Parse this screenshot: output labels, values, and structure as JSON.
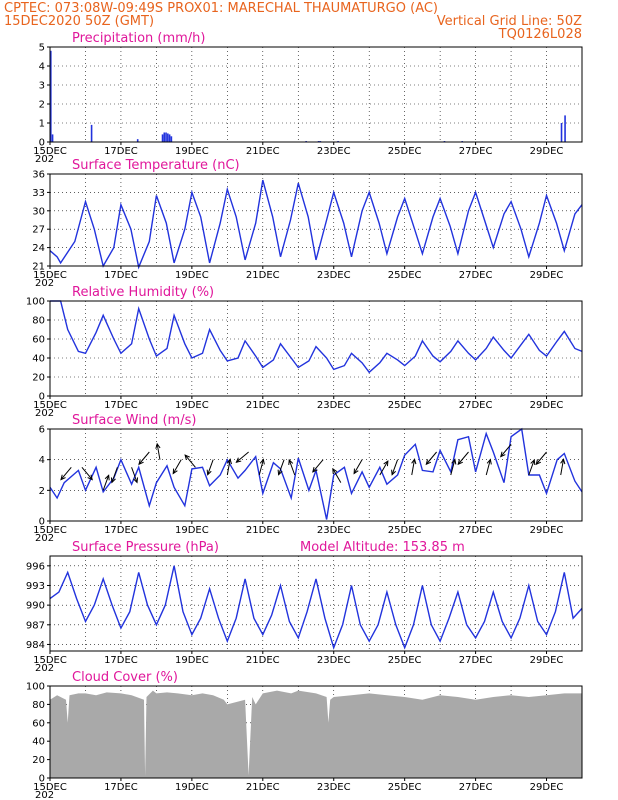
{
  "header": {
    "line1_left": "CPTEC:   073:08W-09:49S   PROX01: MARECHAL THAUMATURGO (AC)",
    "line2_left": "15DEC2020 50Z (GMT)",
    "line2_right": "Vertical Grid Line: 50Z",
    "line3_right": "TQ0126L028"
  },
  "colors": {
    "series": "#2233dd",
    "header": "#e8641e",
    "title": "#e0179b",
    "cloud": "#a9a9a9"
  },
  "x_axis": {
    "labels": [
      "15DEC",
      "17DEC",
      "19DEC",
      "21DEC",
      "23DEC",
      "25DEC",
      "27DEC",
      "29DEC"
    ],
    "clip_label": "202"
  },
  "chart_data": [
    {
      "type": "bar",
      "title": "Precipitation (mm/h)",
      "ylim": [
        0,
        5
      ],
      "yticks": [
        0,
        1,
        2,
        3,
        4,
        5
      ],
      "x": [
        0.0,
        0.05,
        1.15,
        2.45,
        3.15,
        3.2,
        3.25,
        3.3,
        3.35,
        3.4,
        7.2,
        7.55,
        7.6,
        8.1,
        11.1,
        11.6,
        14.4,
        14.5
      ],
      "values": [
        4.8,
        0.4,
        0.9,
        0.15,
        0.4,
        0.5,
        0.5,
        0.45,
        0.4,
        0.3,
        0.05,
        0.05,
        0.05,
        0.05,
        0.05,
        0.05,
        1.0,
        1.4
      ]
    },
    {
      "type": "line",
      "title": "Surface Temperature (nC)",
      "ylim": [
        21,
        36
      ],
      "yticks": [
        21,
        24,
        27,
        30,
        33,
        36
      ],
      "x": [
        0,
        0.2,
        0.3,
        0.7,
        1,
        1.25,
        1.5,
        1.8,
        2,
        2.28,
        2.5,
        2.8,
        3,
        3.28,
        3.5,
        3.8,
        4,
        4.25,
        4.5,
        4.8,
        5,
        5.25,
        5.5,
        5.8,
        6,
        6.28,
        6.5,
        6.78,
        7,
        7.28,
        7.5,
        7.8,
        8,
        8.28,
        8.5,
        8.8,
        9,
        9.28,
        9.5,
        9.8,
        10,
        10.28,
        10.5,
        10.8,
        11,
        11.28,
        11.5,
        11.8,
        12,
        12.28,
        12.5,
        12.8,
        13,
        13.28,
        13.5,
        13.8,
        14,
        14.28,
        14.5,
        14.8,
        15
      ],
      "values": [
        23.5,
        22.5,
        21.5,
        25,
        31.5,
        27,
        21,
        24,
        31,
        27,
        20.8,
        25,
        32.5,
        28,
        21.5,
        27,
        33,
        29,
        21.5,
        28,
        33.5,
        29,
        22,
        28,
        35,
        29,
        22.5,
        28.5,
        34.5,
        29,
        22,
        28.5,
        33,
        28,
        22.5,
        30,
        33,
        28,
        23,
        29,
        32,
        27,
        23,
        29,
        32,
        27.5,
        23,
        30,
        33,
        28,
        24,
        29.5,
        31.5,
        27,
        22.5,
        28,
        32.5,
        28,
        23.5,
        29.5,
        31
      ]
    },
    {
      "type": "line",
      "title": "Relative Humidity (%)",
      "ylim": [
        0,
        100
      ],
      "yticks": [
        0,
        20,
        40,
        60,
        80,
        100
      ],
      "x": [
        0,
        0.3,
        0.5,
        0.8,
        1,
        1.3,
        1.5,
        1.8,
        2,
        2.3,
        2.5,
        2.8,
        3,
        3.3,
        3.5,
        3.8,
        4,
        4.3,
        4.5,
        4.8,
        5,
        5.3,
        5.5,
        5.8,
        6,
        6.3,
        6.5,
        6.8,
        7,
        7.3,
        7.5,
        7.8,
        8,
        8.3,
        8.5,
        8.8,
        9,
        9.3,
        9.5,
        9.8,
        10,
        10.3,
        10.5,
        10.8,
        11,
        11.3,
        11.5,
        11.8,
        12,
        12.3,
        12.5,
        12.8,
        13,
        13.3,
        13.5,
        13.8,
        14,
        14.3,
        14.5,
        14.8,
        15
      ],
      "values": [
        100,
        100,
        70,
        47,
        45,
        67,
        85,
        60,
        45,
        55,
        92,
        60,
        42,
        50,
        85,
        55,
        40,
        45,
        70,
        48,
        37,
        40,
        58,
        42,
        30,
        38,
        55,
        40,
        30,
        37,
        52,
        40,
        28,
        32,
        45,
        35,
        25,
        35,
        45,
        38,
        32,
        42,
        58,
        42,
        36,
        47,
        58,
        45,
        38,
        50,
        62,
        48,
        40,
        55,
        65,
        48,
        42,
        58,
        68,
        50,
        47
      ]
    },
    {
      "type": "line",
      "title": "Surface Wind (m/s)",
      "ylim": [
        0,
        6
      ],
      "yticks": [
        0,
        2,
        4,
        6
      ],
      "x": [
        0,
        0.2,
        0.4,
        0.8,
        1,
        1.3,
        1.5,
        1.8,
        2,
        2.3,
        2.5,
        2.8,
        3,
        3.3,
        3.5,
        3.8,
        4,
        4.3,
        4.5,
        4.8,
        5,
        5.3,
        5.5,
        5.8,
        6,
        6.3,
        6.5,
        6.8,
        7,
        7.3,
        7.5,
        7.8,
        8,
        8.3,
        8.5,
        8.8,
        9,
        9.3,
        9.5,
        9.8,
        10,
        10.3,
        10.5,
        10.8,
        11,
        11.3,
        11.5,
        11.8,
        12,
        12.3,
        12.5,
        12.8,
        13,
        13.3,
        13.5,
        13.8,
        14,
        14.3,
        14.5,
        14.8,
        15
      ],
      "values": [
        2.2,
        1.5,
        2.5,
        3.3,
        2,
        3.5,
        1.9,
        2.8,
        4,
        2.4,
        3.5,
        1,
        2.5,
        3.6,
        2.2,
        1,
        3.4,
        3.5,
        2.3,
        3,
        4,
        2.8,
        3.3,
        4.2,
        1.8,
        3.8,
        3.4,
        1.5,
        4.1,
        2,
        3.3,
        0.1,
        3,
        3.5,
        1.8,
        3.2,
        2.2,
        3.5,
        2.4,
        3,
        4.3,
        5,
        3.3,
        3.2,
        4.6,
        3.2,
        5.3,
        5.5,
        3.2,
        5.7,
        4.5,
        2.5,
        5.5,
        6,
        3,
        3,
        1.8,
        4,
        4.4,
        2.6,
        1.9
      ]
    },
    {
      "type": "line",
      "title": "Surface Pressure (hPa)",
      "ylim": [
        983,
        997.5
      ],
      "yticks": [
        984,
        987,
        990,
        993,
        996
      ],
      "x": [
        0,
        0.25,
        0.5,
        0.75,
        1,
        1.25,
        1.5,
        1.75,
        2,
        2.25,
        2.5,
        2.75,
        3,
        3.25,
        3.5,
        3.75,
        4,
        4.25,
        4.5,
        4.75,
        5,
        5.25,
        5.5,
        5.75,
        6,
        6.25,
        6.5,
        6.75,
        7,
        7.25,
        7.5,
        7.75,
        8,
        8.25,
        8.5,
        8.75,
        9,
        9.25,
        9.5,
        9.75,
        10,
        10.25,
        10.5,
        10.75,
        11,
        11.25,
        11.5,
        11.75,
        12,
        12.25,
        12.5,
        12.75,
        13,
        13.25,
        13.5,
        13.75,
        14,
        14.25,
        14.5,
        14.75,
        15
      ],
      "values": [
        991,
        992,
        995,
        991,
        987.5,
        990,
        994,
        990,
        986.5,
        989,
        995,
        990,
        987,
        990,
        996,
        989,
        985.5,
        988,
        992.5,
        988,
        984.5,
        988,
        994,
        988,
        985.5,
        988.5,
        993,
        987.5,
        985,
        989,
        994,
        988,
        983.5,
        987,
        993,
        987,
        984.5,
        987,
        992,
        987,
        983.5,
        987,
        993,
        987,
        984.5,
        988,
        992,
        987,
        985,
        987.5,
        992,
        987.5,
        985,
        988,
        993,
        987.5,
        985.5,
        989,
        995,
        988,
        989.5
      ]
    },
    {
      "type": "area",
      "title": "Cloud Cover (%)",
      "ylim": [
        0,
        100
      ],
      "yticks": [
        0,
        20,
        40,
        60,
        80,
        100
      ],
      "x": [
        0,
        0.2,
        0.45,
        0.5,
        0.55,
        0.8,
        1,
        1.3,
        1.6,
        2,
        2.3,
        2.65,
        2.68,
        2.72,
        2.9,
        3,
        3.3,
        3.6,
        4,
        4.3,
        4.6,
        4.9,
        5,
        5.5,
        5.6,
        5.7,
        5.8,
        6,
        6.4,
        6.8,
        7,
        7.5,
        7.8,
        7.85,
        7.9,
        8,
        8.5,
        9,
        9.5,
        10,
        10.5,
        11,
        11.5,
        12,
        12.5,
        13,
        13.5,
        14,
        14.5,
        15
      ],
      "values": [
        85,
        90,
        85,
        60,
        90,
        92,
        92,
        90,
        93,
        92,
        90,
        85,
        2,
        88,
        95,
        92,
        93,
        92,
        90,
        92,
        90,
        85,
        80,
        85,
        3,
        88,
        80,
        92,
        95,
        92,
        95,
        92,
        88,
        60,
        85,
        88,
        90,
        92,
        90,
        88,
        85,
        90,
        88,
        85,
        88,
        90,
        88,
        90,
        92,
        92
      ]
    }
  ],
  "panel_extras": {
    "model_altitude": "Model Altitude: 153.85 m"
  },
  "wind_arrows": [
    {
      "x": 0.6,
      "speed": 3.5,
      "dir": 220
    },
    {
      "x": 0.9,
      "speed": 3.5,
      "dir": 140
    },
    {
      "x": 1.5,
      "speed": 2,
      "dir": 20
    },
    {
      "x": 1.9,
      "speed": 3.5,
      "dir": 200
    },
    {
      "x": 2.3,
      "speed": 3.5,
      "dir": 160
    },
    {
      "x": 2.8,
      "speed": 4.5,
      "dir": 220
    },
    {
      "x": 3.1,
      "speed": 4,
      "dir": 350
    },
    {
      "x": 3.7,
      "speed": 4,
      "dir": 210
    },
    {
      "x": 4.1,
      "speed": 3.5,
      "dir": 320
    },
    {
      "x": 4.6,
      "speed": 4,
      "dir": 200
    },
    {
      "x": 5,
      "speed": 3,
      "dir": 10
    },
    {
      "x": 5.6,
      "speed": 4.5,
      "dir": 230
    },
    {
      "x": 5.9,
      "speed": 3,
      "dir": 15
    },
    {
      "x": 6.6,
      "speed": 4,
      "dir": 200
    },
    {
      "x": 6.9,
      "speed": 3,
      "dir": 340
    },
    {
      "x": 7.7,
      "speed": 4,
      "dir": 220
    },
    {
      "x": 8.2,
      "speed": 2.5,
      "dir": 330
    },
    {
      "x": 8.8,
      "speed": 4,
      "dir": 210
    },
    {
      "x": 9.3,
      "speed": 3,
      "dir": 30
    },
    {
      "x": 9.8,
      "speed": 4,
      "dir": 200
    },
    {
      "x": 10.2,
      "speed": 3,
      "dir": 10
    },
    {
      "x": 10.9,
      "speed": 4.5,
      "dir": 220
    },
    {
      "x": 11.3,
      "speed": 3,
      "dir": 15
    },
    {
      "x": 11.8,
      "speed": 4.5,
      "dir": 220
    },
    {
      "x": 12.3,
      "speed": 3,
      "dir": 15
    },
    {
      "x": 13,
      "speed": 5,
      "dir": 220
    },
    {
      "x": 13.5,
      "speed": 3,
      "dir": 20
    },
    {
      "x": 14,
      "speed": 4.5,
      "dir": 220
    },
    {
      "x": 14.4,
      "speed": 3,
      "dir": 10
    }
  ]
}
